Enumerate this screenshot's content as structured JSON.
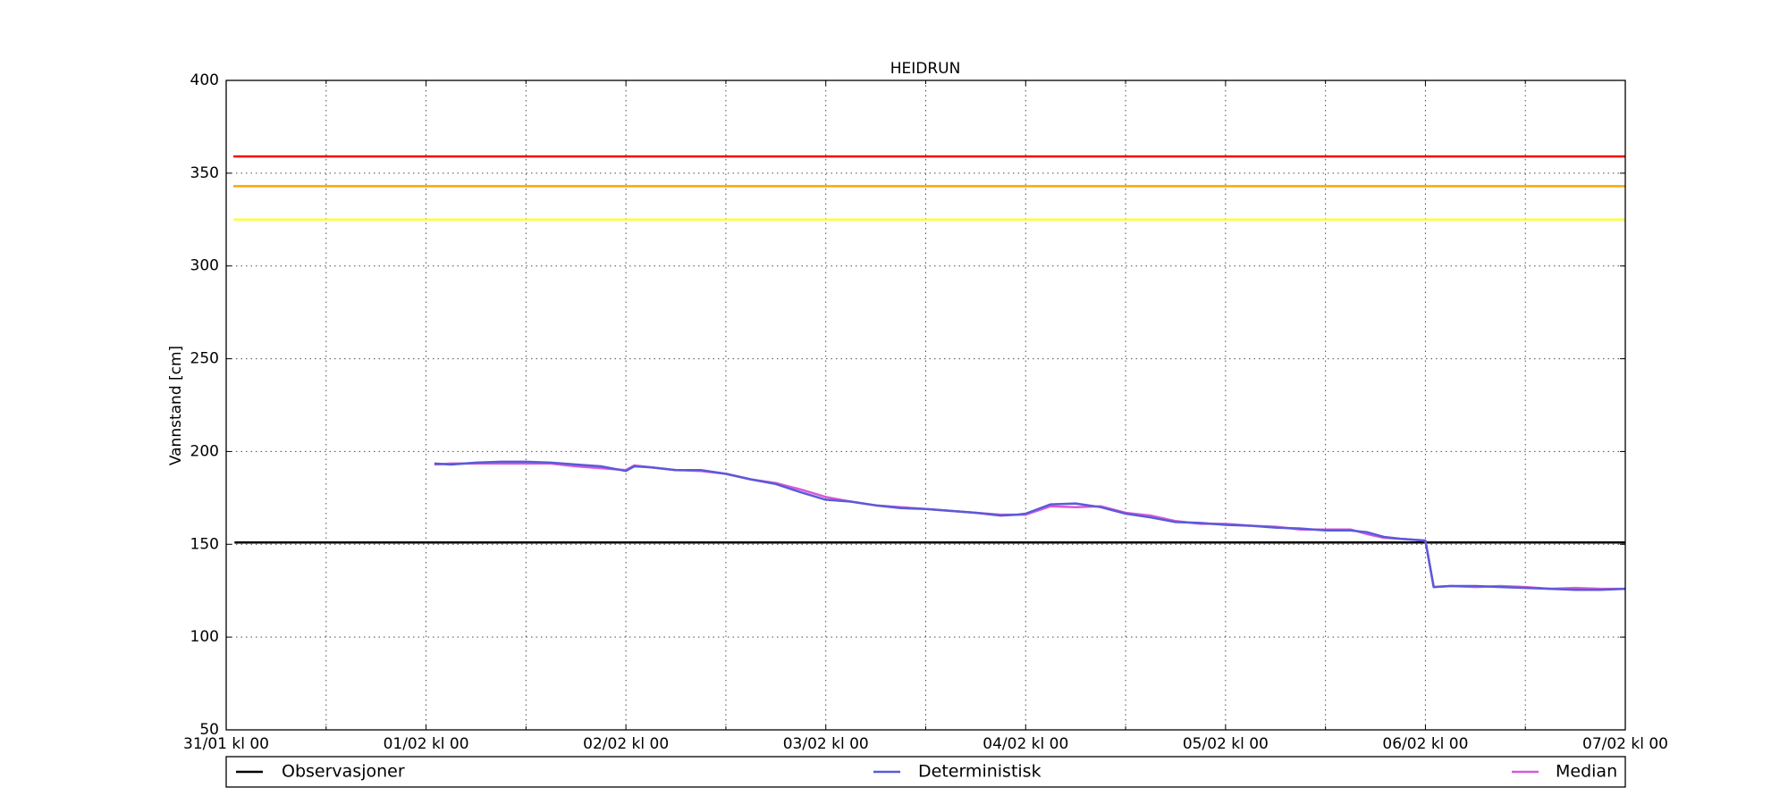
{
  "chart_data": {
    "type": "line",
    "title": "HEIDRUN",
    "ylabel": "Vannstand [cm]",
    "xlim": [
      0,
      168
    ],
    "xticks": [
      {
        "value": 0,
        "label": "31/01 kl 00"
      },
      {
        "value": 24,
        "label": "01/02 kl 00"
      },
      {
        "value": 48,
        "label": "02/02 kl 00"
      },
      {
        "value": 72,
        "label": "03/02 kl 00"
      },
      {
        "value": 96,
        "label": "04/02 kl 00"
      },
      {
        "value": 120,
        "label": "05/02 kl 00"
      },
      {
        "value": 144,
        "label": "06/02 kl 00"
      },
      {
        "value": 168,
        "label": "07/02 kl 00"
      }
    ],
    "xminor_ticks": [
      12,
      36,
      60,
      84,
      108,
      132,
      156
    ],
    "ylim": [
      50,
      400
    ],
    "yticks": [
      50,
      100,
      150,
      200,
      250,
      300,
      350,
      400
    ],
    "grid": true,
    "reference_lines": [
      {
        "value": 359,
        "color": "#ff0000"
      },
      {
        "value": 343,
        "color": "#ffa500"
      },
      {
        "value": 325,
        "color": "#ffff33"
      }
    ],
    "series": [
      {
        "name": "Observasjoner",
        "color": "#000000",
        "x": [
          1,
          168
        ],
        "values": [
          151,
          151
        ]
      },
      {
        "name": "Deterministisk",
        "color": "#5a5ad8",
        "x": [
          25,
          27,
          30,
          33,
          36,
          39,
          42,
          45,
          48,
          49,
          51,
          54,
          57,
          60,
          63,
          66,
          69,
          72,
          75,
          78,
          81,
          84,
          87,
          90,
          93,
          95,
          96,
          99,
          102,
          105,
          108,
          111,
          114,
          117,
          120,
          123,
          126,
          129,
          132,
          135,
          137,
          139,
          141,
          144,
          145,
          147,
          150,
          153,
          156,
          159,
          162,
          165,
          168
        ],
        "values": [
          193.5,
          193,
          194,
          194.5,
          194.5,
          194,
          193,
          192,
          189.5,
          192,
          191.5,
          190,
          190,
          188,
          185,
          182.5,
          178,
          174,
          173,
          171,
          169.5,
          169,
          168,
          167,
          165.5,
          166,
          166.5,
          171.5,
          172,
          170,
          166.5,
          164.5,
          162,
          161.5,
          160.5,
          160,
          159,
          158.5,
          157.5,
          157.5,
          156.5,
          154,
          153,
          152,
          127,
          127.5,
          127.5,
          127,
          126.5,
          126,
          125.5,
          125.5,
          126
        ]
      },
      {
        "name": "Median",
        "color": "#d65ad8",
        "x": [
          25,
          27,
          30,
          33,
          36,
          39,
          42,
          45,
          48,
          49,
          51,
          54,
          57,
          60,
          63,
          66,
          69,
          72,
          75,
          78,
          81,
          84,
          87,
          90,
          93,
          95,
          96,
          99,
          102,
          105,
          108,
          111,
          114,
          117,
          120,
          123,
          126,
          129,
          132,
          135,
          137,
          139,
          141,
          144,
          145,
          147,
          150,
          153,
          156,
          159,
          162,
          165,
          168
        ],
        "values": [
          193,
          193.5,
          193.5,
          193.5,
          193.5,
          193.5,
          192,
          191,
          190,
          192.5,
          191.5,
          190,
          189.5,
          188,
          185,
          183,
          179.5,
          175.5,
          173,
          171,
          170,
          169,
          168,
          167,
          166,
          166,
          166,
          170.5,
          170,
          170.5,
          167,
          165.5,
          162.5,
          161,
          161,
          160,
          159.5,
          158,
          158,
          158,
          155.5,
          153.5,
          153,
          152,
          127,
          127.5,
          127,
          127.5,
          127,
          126,
          126.5,
          126,
          126
        ]
      }
    ],
    "legend": "bottom"
  }
}
